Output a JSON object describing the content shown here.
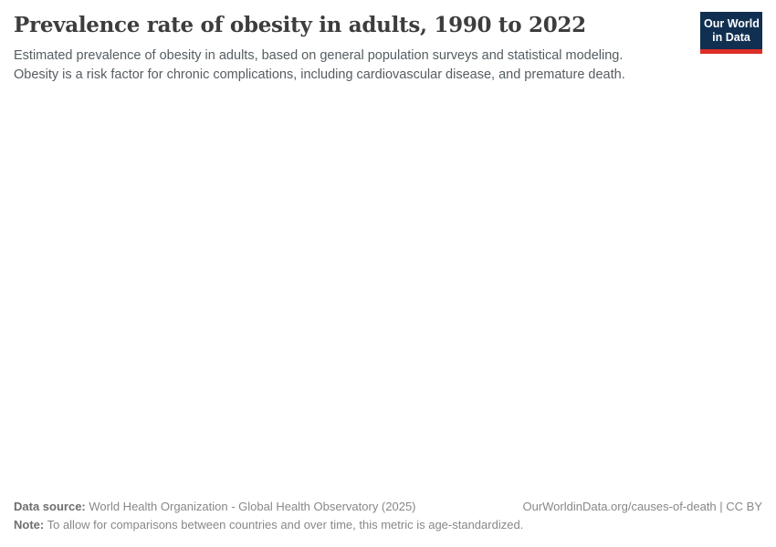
{
  "header": {
    "title": "Prevalence rate of obesity in adults, 1990 to 2022",
    "subtitle_lines": [
      "Estimated prevalence of obesity in adults, based on general population surveys and statistical modeling.",
      "Obesity is a risk factor for chronic complications, including cardiovascular disease, and premature death."
    ]
  },
  "logo": {
    "line1": "Our World",
    "line2": "in Data",
    "bg_color": "#112f51",
    "stripe_color": "#dc2e27"
  },
  "footer": {
    "data_source_label": "Data source:",
    "data_source_text": " World Health Organization - Global Health Observatory (2025)",
    "link_text": "OurWorldinData.org/causes-of-death | CC BY",
    "note_label": "Note:",
    "note_text": " To allow for comparisons between countries and over time, this metric is age-standardized."
  },
  "colors": {
    "title": "#3d3d3d",
    "subtitle": "#555d61",
    "footer_text": "#888888",
    "footer_label": "#6e6e6e"
  },
  "chart_data": {
    "type": "line",
    "title": "Prevalence rate of obesity in adults, 1990 to 2022",
    "x_range": [
      1990,
      2022
    ],
    "series": [],
    "note": "The plot area is blank in the screenshot; no axes, gridlines, or data series are rendered."
  }
}
